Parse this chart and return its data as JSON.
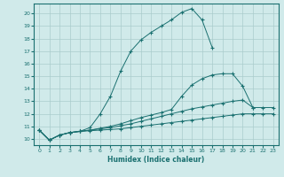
{
  "bg_color": "#d0eaea",
  "grid_color": "#aacccc",
  "line_color": "#1a7070",
  "xlabel": "Humidex (Indice chaleur)",
  "xlim": [
    -0.5,
    23.5
  ],
  "ylim": [
    9.5,
    20.8
  ],
  "xticks": [
    0,
    1,
    2,
    3,
    4,
    5,
    6,
    7,
    8,
    9,
    10,
    11,
    12,
    13,
    14,
    15,
    16,
    17,
    18,
    19,
    20,
    21,
    22,
    23
  ],
  "yticks": [
    10,
    11,
    12,
    13,
    14,
    15,
    16,
    17,
    18,
    19,
    20
  ],
  "s1_x": [
    0,
    1,
    2,
    3,
    4,
    5,
    6,
    7,
    8,
    9,
    10,
    11,
    12,
    13,
    14,
    15,
    16,
    17
  ],
  "s1_y": [
    10.7,
    9.9,
    10.3,
    10.5,
    10.6,
    10.9,
    12.0,
    13.4,
    15.4,
    17.0,
    17.9,
    18.5,
    19.0,
    19.5,
    20.1,
    20.4,
    19.5,
    17.3
  ],
  "s2_x": [
    0,
    1,
    2,
    3,
    4,
    5,
    6,
    7,
    8,
    9,
    10,
    11,
    12,
    13,
    14,
    15,
    16,
    17,
    18,
    19,
    20,
    21
  ],
  "s2_y": [
    10.7,
    9.9,
    10.3,
    10.5,
    10.6,
    10.7,
    10.85,
    11.0,
    11.2,
    11.45,
    11.7,
    11.9,
    12.1,
    12.35,
    13.4,
    14.3,
    14.8,
    15.1,
    15.2,
    15.2,
    14.2,
    12.5
  ],
  "s3_x": [
    0,
    1,
    2,
    3,
    4,
    5,
    6,
    7,
    8,
    9,
    10,
    11,
    12,
    13,
    14,
    15,
    16,
    17,
    18,
    19,
    20,
    21,
    22,
    23
  ],
  "s3_y": [
    10.7,
    9.9,
    10.3,
    10.5,
    10.6,
    10.7,
    10.8,
    10.9,
    11.05,
    11.2,
    11.4,
    11.6,
    11.8,
    12.0,
    12.2,
    12.4,
    12.55,
    12.7,
    12.85,
    13.0,
    13.1,
    12.5,
    12.5,
    12.5
  ],
  "s4_x": [
    0,
    1,
    2,
    3,
    4,
    5,
    6,
    7,
    8,
    9,
    10,
    11,
    12,
    13,
    14,
    15,
    16,
    17,
    18,
    19,
    20,
    21,
    22,
    23
  ],
  "s4_y": [
    10.7,
    9.9,
    10.3,
    10.5,
    10.6,
    10.65,
    10.7,
    10.75,
    10.8,
    10.9,
    11.0,
    11.1,
    11.2,
    11.3,
    11.4,
    11.5,
    11.6,
    11.7,
    11.8,
    11.9,
    12.0,
    12.0,
    12.0,
    12.0
  ]
}
